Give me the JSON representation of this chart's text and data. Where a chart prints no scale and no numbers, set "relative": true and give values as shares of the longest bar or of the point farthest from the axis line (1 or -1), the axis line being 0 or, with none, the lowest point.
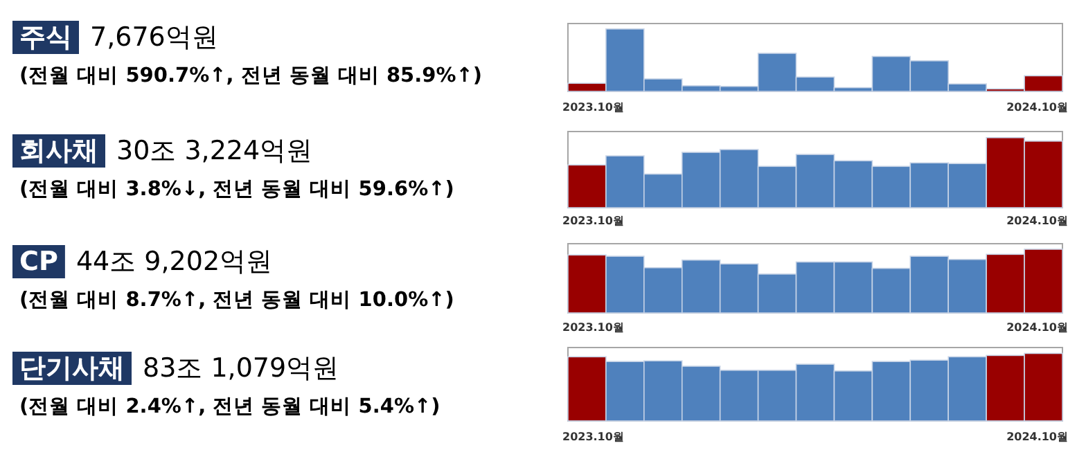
{
  "chart_data": [
    {
      "type": "other",
      "title": "주식",
      "subtitle": "7,676억원",
      "annotations": [
        "(전월 대비 590.7%↑, 전년 동월 대비 85.9%↑)"
      ]
    },
    {
      "type": "bar",
      "relative": true,
      "categories": [
        "2023.10월",
        null,
        null,
        null,
        null,
        null,
        null,
        null,
        null,
        null,
        null,
        null,
        "2024.10월"
      ],
      "values": [
        0.13,
        1.0,
        0.2,
        0.09,
        0.08,
        0.61,
        0.23,
        0.06,
        0.56,
        0.49,
        0.12,
        0.04,
        0.25
      ],
      "colors": [
        "#990000",
        "#4f81bd",
        "#4f81bd",
        "#4f81bd",
        "#4f81bd",
        "#4f81bd",
        "#4f81bd",
        "#4f81bd",
        "#4f81bd",
        "#4f81bd",
        "#4f81bd",
        "#990000",
        "#990000"
      ]
    },
    {
      "type": "other",
      "title": "회사채",
      "subtitle": "30조 3,224억원",
      "annotations": [
        "(전월 대비 3.8%↓, 전년 동월 대비 59.6%↑)"
      ]
    },
    {
      "type": "bar",
      "relative": true,
      "categories": [
        "2023.10월",
        null,
        null,
        null,
        null,
        null,
        null,
        null,
        null,
        null,
        null,
        null,
        "2024.10월"
      ],
      "values": [
        0.61,
        0.74,
        0.48,
        0.79,
        0.83,
        0.59,
        0.76,
        0.67,
        0.59,
        0.64,
        0.63,
        1.0,
        0.95
      ],
      "colors": [
        "#990000",
        "#4f81bd",
        "#4f81bd",
        "#4f81bd",
        "#4f81bd",
        "#4f81bd",
        "#4f81bd",
        "#4f81bd",
        "#4f81bd",
        "#4f81bd",
        "#4f81bd",
        "#990000",
        "#990000"
      ]
    },
    {
      "type": "other",
      "title": "CP",
      "subtitle": "44조 9,202억원",
      "annotations": [
        "(전월 대비 8.7%↑, 전년 동월 대비 10.0%↑)"
      ]
    },
    {
      "type": "bar",
      "relative": true,
      "categories": [
        "2023.10월",
        null,
        null,
        null,
        null,
        null,
        null,
        null,
        null,
        null,
        null,
        null,
        "2024.10월"
      ],
      "values": [
        0.91,
        0.89,
        0.71,
        0.83,
        0.77,
        0.61,
        0.8,
        0.8,
        0.7,
        0.89,
        0.84,
        0.92,
        1.0
      ],
      "colors": [
        "#990000",
        "#4f81bd",
        "#4f81bd",
        "#4f81bd",
        "#4f81bd",
        "#4f81bd",
        "#4f81bd",
        "#4f81bd",
        "#4f81bd",
        "#4f81bd",
        "#4f81bd",
        "#990000",
        "#990000"
      ]
    },
    {
      "type": "other",
      "title": "단기사채",
      "subtitle": "83조 1,079억원",
      "annotations": [
        "(전월 대비 2.4%↑, 전년 동월 대비 5.4%↑)"
      ]
    },
    {
      "type": "bar",
      "relative": true,
      "categories": [
        "2023.10월",
        null,
        null,
        null,
        null,
        null,
        null,
        null,
        null,
        null,
        null,
        null,
        "2024.10월"
      ],
      "values": [
        0.95,
        0.88,
        0.89,
        0.81,
        0.75,
        0.75,
        0.84,
        0.74,
        0.88,
        0.9,
        0.95,
        0.97,
        1.0
      ],
      "colors": [
        "#990000",
        "#4f81bd",
        "#4f81bd",
        "#4f81bd",
        "#4f81bd",
        "#4f81bd",
        "#4f81bd",
        "#4f81bd",
        "#4f81bd",
        "#4f81bd",
        "#4f81bd",
        "#990000",
        "#990000"
      ]
    }
  ]
}
